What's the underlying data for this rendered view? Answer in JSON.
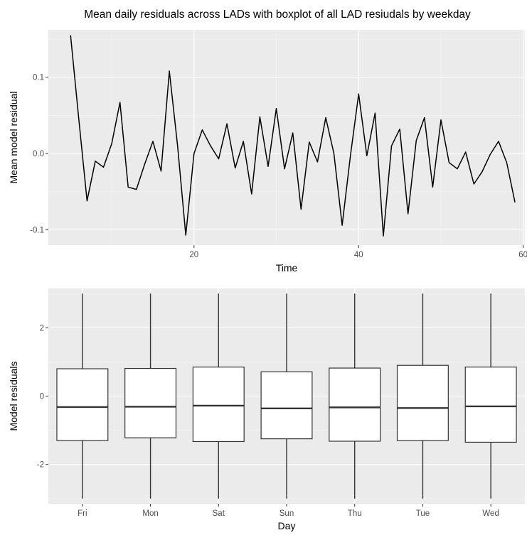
{
  "title": "Mean daily residuals across LADs with boxplot of all LAD resiudals by weekday",
  "chart_data": [
    {
      "type": "line",
      "xlabel": "Time",
      "ylabel": "Mean model residual",
      "xlim": [
        2.3,
        60.2
      ],
      "ylim": [
        -0.12,
        0.162
      ],
      "xticks": [
        20,
        40,
        60
      ],
      "xtick_labels": [
        "20",
        "40",
        "60"
      ],
      "yticks": [
        -0.1,
        0.0,
        0.1
      ],
      "ytick_labels": [
        "-0.1",
        "0.0",
        "0.1"
      ],
      "grid": true,
      "legend": "none",
      "x": [
        5,
        6,
        7,
        8,
        9,
        10,
        11,
        12,
        13,
        14,
        15,
        16,
        17,
        18,
        19,
        20,
        21,
        22,
        23,
        24,
        25,
        26,
        27,
        28,
        29,
        30,
        31,
        32,
        33,
        34,
        35,
        36,
        37,
        38,
        39,
        40,
        41,
        42,
        43,
        44,
        45,
        46,
        47,
        48,
        49,
        50,
        51,
        52,
        53,
        54,
        55,
        56,
        57,
        58,
        59
      ],
      "y": [
        0.155,
        0.045,
        -0.062,
        -0.01,
        -0.018,
        0.013,
        0.067,
        -0.044,
        -0.047,
        -0.014,
        0.016,
        -0.023,
        0.108,
        0.01,
        -0.107,
        0.0,
        0.031,
        0.01,
        -0.007,
        0.039,
        -0.019,
        0.016,
        -0.053,
        0.048,
        -0.017,
        0.059,
        -0.02,
        0.027,
        -0.073,
        0.015,
        -0.011,
        0.047,
        0.0,
        -0.094,
        -0.003,
        0.078,
        -0.003,
        0.053,
        -0.108,
        0.01,
        0.032,
        -0.079,
        0.017,
        0.047,
        -0.044,
        0.044,
        -0.012,
        -0.02,
        0.002,
        -0.04,
        -0.024,
        -0.001,
        0.016,
        -0.012,
        -0.064
      ]
    },
    {
      "type": "box",
      "xlabel": "Day",
      "ylabel": "Model residuals",
      "ylim": [
        -3.15,
        3.15
      ],
      "yticks": [
        -2,
        0,
        2
      ],
      "ytick_labels": [
        "-2",
        "0",
        "2"
      ],
      "grid": true,
      "legend": "none",
      "categories": [
        "Fri",
        "Mon",
        "Sat",
        "Sun",
        "Thu",
        "Tue",
        "Wed"
      ],
      "boxes": [
        {
          "whisker_low": -3.0,
          "q1": -1.3,
          "median": -0.32,
          "q3": 0.8,
          "whisker_high": 3.0
        },
        {
          "whisker_low": -3.0,
          "q1": -1.22,
          "median": -0.31,
          "q3": 0.81,
          "whisker_high": 3.0
        },
        {
          "whisker_low": -3.0,
          "q1": -1.33,
          "median": -0.28,
          "q3": 0.85,
          "whisker_high": 3.0
        },
        {
          "whisker_low": -3.0,
          "q1": -1.25,
          "median": -0.36,
          "q3": 0.71,
          "whisker_high": 3.0
        },
        {
          "whisker_low": -3.0,
          "q1": -1.32,
          "median": -0.33,
          "q3": 0.82,
          "whisker_high": 3.0
        },
        {
          "whisker_low": -3.0,
          "q1": -1.3,
          "median": -0.35,
          "q3": 0.9,
          "whisker_high": 3.0
        },
        {
          "whisker_low": -3.0,
          "q1": -1.35,
          "median": -0.3,
          "q3": 0.85,
          "whisker_high": 3.0
        }
      ]
    }
  ],
  "colors": {
    "panel_bg": "#ebebeb",
    "grid_major": "#ffffff",
    "grid_minor": "#f5f5f5",
    "line": "#000000",
    "box_fill": "#ffffff",
    "box_stroke": "#333333",
    "tick_text": "#4d4d4d",
    "axis_title": "#000000"
  }
}
